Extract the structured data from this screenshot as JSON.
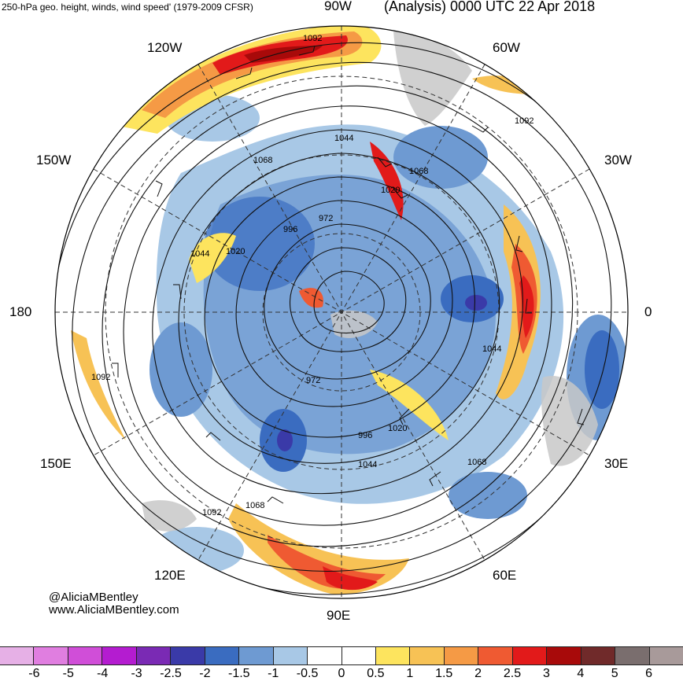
{
  "header": {
    "title_left": "250-hPa geo. height, winds, wind speed' (1979-2009 CFSR)",
    "title_right": "(Analysis) 0000 UTC 22 Apr 2018"
  },
  "longitude_labels": [
    "90W",
    "60W",
    "30W",
    "0",
    "30E",
    "60E",
    "90E",
    "120E",
    "150E",
    "180",
    "150W",
    "120W"
  ],
  "contour_labels": [
    "1092",
    "1092",
    "1092",
    "1092",
    "1068",
    "1068",
    "1068",
    "1068",
    "1044",
    "1044",
    "1044",
    "1044",
    "1020",
    "1020",
    "1020",
    "996",
    "996",
    "972",
    "972"
  ],
  "credit": {
    "handle": "@AliciaMBentley",
    "website": "www.AliciaMBentley.com"
  },
  "colorbar": {
    "colors": [
      "#e6b0e6",
      "#e07ee0",
      "#d04ed8",
      "#b41cd0",
      "#7a2ab4",
      "#3a3aa8",
      "#3a6cc0",
      "#6e9ad2",
      "#a8c8e6",
      "#ffffff",
      "#ffffff",
      "#fde45e",
      "#f7c255",
      "#f59a45",
      "#ef5a32",
      "#e21a1a",
      "#a80a0a",
      "#702a2a",
      "#7a6e6e",
      "#a89a9a"
    ],
    "ticks": [
      "-6",
      "-5",
      "-4",
      "-3",
      "-2.5",
      "-2",
      "-1.5",
      "-1",
      "-0.5",
      "0",
      "0.5",
      "1",
      "1.5",
      "2",
      "2.5",
      "3",
      "4",
      "5",
      "6"
    ]
  }
}
